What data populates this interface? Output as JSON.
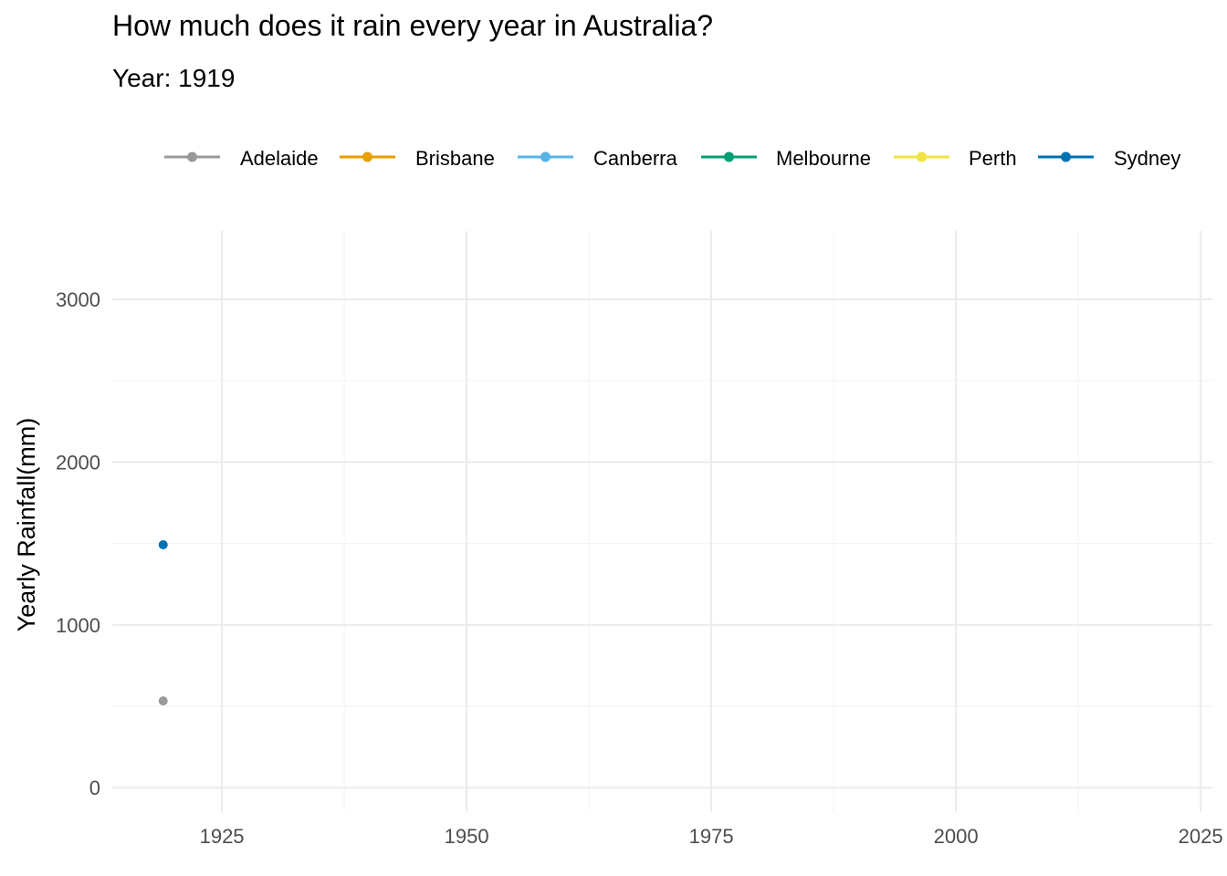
{
  "chart_data": {
    "type": "line",
    "title": "How much does it rain every year in Australia?",
    "subtitle": "Year: 1919",
    "xlabel": "",
    "ylabel": "Yearly Rainfall(mm)",
    "xlim": [
      1913.8,
      2026.2
    ],
    "ylim": [
      -150,
      3420
    ],
    "xticks": [
      1925,
      1950,
      1975,
      2000,
      2025
    ],
    "yticks": [
      0,
      1000,
      2000,
      3000
    ],
    "grid": true,
    "legend_position": "top",
    "series": [
      {
        "name": "Adelaide",
        "color": "#999999",
        "points": [
          [
            1919,
            533
          ]
        ]
      },
      {
        "name": "Brisbane",
        "color": "#E69F00",
        "points": []
      },
      {
        "name": "Canberra",
        "color": "#56B4E9",
        "points": []
      },
      {
        "name": "Melbourne",
        "color": "#009E73",
        "points": []
      },
      {
        "name": "Perth",
        "color": "#F0E442",
        "points": []
      },
      {
        "name": "Sydney",
        "color": "#0072B2",
        "points": [
          [
            1919,
            1492
          ]
        ]
      }
    ]
  }
}
